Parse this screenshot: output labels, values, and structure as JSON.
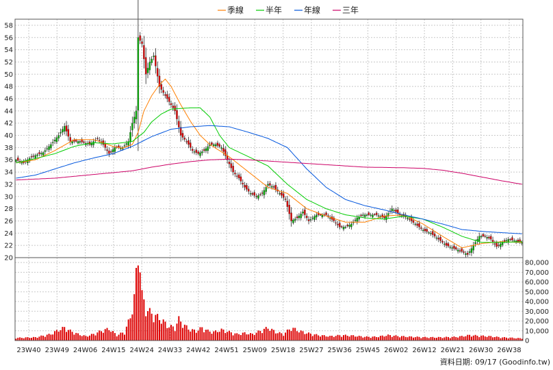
{
  "legend": [
    {
      "name": "季線",
      "color": "#ff7f00"
    },
    {
      "name": "半年",
      "color": "#00cc00"
    },
    {
      "name": "年線",
      "color": "#0055dd"
    },
    {
      "name": "三年",
      "color": "#cc0066"
    }
  ],
  "footer": "資料日期: 09/17  (Goodinfo.tw)",
  "chart_data": {
    "type": "candlestick",
    "title": "",
    "price_axis": {
      "ylim": [
        20,
        59
      ],
      "ticks": [
        20,
        22,
        24,
        26,
        28,
        30,
        32,
        34,
        36,
        38,
        40,
        42,
        44,
        46,
        48,
        50,
        52,
        54,
        56,
        58
      ]
    },
    "volume_axis": {
      "ylim": [
        0,
        85000
      ],
      "ticks": [
        0,
        10000,
        20000,
        30000,
        40000,
        50000,
        60000,
        70000,
        80000
      ],
      "tick_labels": [
        "0",
        "10,000",
        "20,000",
        "30,000",
        "40,000",
        "50,000",
        "60,000",
        "70,000",
        "80,000"
      ]
    },
    "x_tick_labels": [
      "23W40",
      "23W49",
      "24W06",
      "24W15",
      "24W24",
      "24W33",
      "24W42",
      "24W51",
      "25W09",
      "25W18",
      "25W27",
      "25W36",
      "25W45",
      "26W02",
      "26W12",
      "26W21",
      "26W30",
      "26W38"
    ],
    "grid": true,
    "up_color": "#00aa00",
    "down_color": "#dd0000",
    "volume_color": "#dd0000",
    "close_anchors": [
      [
        0,
        36
      ],
      [
        4,
        35.5
      ],
      [
        8,
        36.5
      ],
      [
        14,
        37.2
      ],
      [
        18,
        38.5
      ],
      [
        22,
        40
      ],
      [
        25,
        41.5
      ],
      [
        28,
        39
      ],
      [
        33,
        39
      ],
      [
        38,
        38.5
      ],
      [
        42,
        39.5
      ],
      [
        45,
        38.5
      ],
      [
        48,
        37
      ],
      [
        51,
        38
      ],
      [
        55,
        38
      ],
      [
        58,
        39
      ],
      [
        60,
        42
      ],
      [
        62,
        44
      ],
      [
        63,
        56
      ],
      [
        65,
        55
      ],
      [
        67,
        50
      ],
      [
        69,
        52
      ],
      [
        71,
        53
      ],
      [
        74,
        48
      ],
      [
        76,
        47
      ],
      [
        78,
        46
      ],
      [
        80,
        45
      ],
      [
        82,
        44
      ],
      [
        85,
        40
      ],
      [
        88,
        39
      ],
      [
        91,
        37.5
      ],
      [
        94,
        37
      ],
      [
        97,
        37.5
      ],
      [
        100,
        38.5
      ],
      [
        103,
        38.5
      ],
      [
        106,
        38
      ],
      [
        109,
        36
      ],
      [
        112,
        34
      ],
      [
        115,
        33
      ],
      [
        118,
        31.5
      ],
      [
        121,
        30.5
      ],
      [
        124,
        30
      ],
      [
        127,
        30.5
      ],
      [
        130,
        32
      ],
      [
        133,
        31.5
      ],
      [
        136,
        30.5
      ],
      [
        139,
        29.5
      ],
      [
        142,
        26
      ],
      [
        145,
        26.5
      ],
      [
        148,
        27.5
      ],
      [
        151,
        26
      ],
      [
        155,
        27
      ],
      [
        160,
        27
      ],
      [
        164,
        26
      ],
      [
        167,
        25
      ],
      [
        170,
        25
      ],
      [
        173,
        25.5
      ],
      [
        176,
        26.5
      ],
      [
        179,
        27
      ],
      [
        182,
        27
      ],
      [
        186,
        27
      ],
      [
        190,
        26.5
      ],
      [
        194,
        28
      ],
      [
        198,
        27
      ],
      [
        202,
        26.5
      ],
      [
        206,
        25.5
      ],
      [
        210,
        24.5
      ],
      [
        214,
        24
      ],
      [
        218,
        23
      ],
      [
        222,
        22
      ],
      [
        226,
        21.5
      ],
      [
        230,
        21
      ],
      [
        233,
        20.5
      ],
      [
        236,
        22
      ],
      [
        239,
        23.5
      ],
      [
        242,
        23.5
      ],
      [
        245,
        23
      ],
      [
        248,
        21.8
      ],
      [
        251,
        22.5
      ],
      [
        254,
        23
      ],
      [
        257,
        22.8
      ],
      [
        261,
        22.5
      ]
    ],
    "volume_anchors": [
      [
        0,
        2500
      ],
      [
        10,
        3000
      ],
      [
        18,
        6000
      ],
      [
        22,
        10000
      ],
      [
        25,
        12000
      ],
      [
        28,
        9000
      ],
      [
        32,
        6000
      ],
      [
        36,
        4000
      ],
      [
        40,
        6000
      ],
      [
        44,
        9000
      ],
      [
        48,
        11000
      ],
      [
        52,
        5000
      ],
      [
        56,
        8000
      ],
      [
        59,
        22000
      ],
      [
        61,
        40000
      ],
      [
        63,
        82000
      ],
      [
        64,
        72000
      ],
      [
        65,
        42000
      ],
      [
        67,
        30000
      ],
      [
        70,
        25000
      ],
      [
        73,
        22000
      ],
      [
        76,
        18000
      ],
      [
        78,
        14000
      ],
      [
        80,
        13000
      ],
      [
        82,
        12000
      ],
      [
        84,
        20000
      ],
      [
        87,
        14000
      ],
      [
        90,
        10000
      ],
      [
        93,
        9000
      ],
      [
        96,
        12000
      ],
      [
        99,
        9000
      ],
      [
        102,
        8000
      ],
      [
        106,
        10000
      ],
      [
        110,
        8000
      ],
      [
        114,
        6000
      ],
      [
        118,
        7000
      ],
      [
        122,
        6000
      ],
      [
        126,
        9000
      ],
      [
        130,
        12000
      ],
      [
        134,
        8000
      ],
      [
        138,
        6000
      ],
      [
        142,
        12000
      ],
      [
        146,
        9000
      ],
      [
        150,
        7000
      ],
      [
        156,
        5000
      ],
      [
        162,
        4000
      ],
      [
        168,
        5000
      ],
      [
        174,
        4500
      ],
      [
        180,
        3500
      ],
      [
        186,
        3500
      ],
      [
        192,
        5000
      ],
      [
        198,
        4000
      ],
      [
        204,
        3500
      ],
      [
        212,
        3000
      ],
      [
        220,
        3000
      ],
      [
        228,
        3500
      ],
      [
        234,
        5000
      ],
      [
        238,
        4500
      ],
      [
        244,
        4000
      ],
      [
        250,
        3000
      ],
      [
        256,
        2500
      ],
      [
        261,
        2000
      ]
    ],
    "ma_series": [
      {
        "name": "季線",
        "color": "#ff7f00",
        "points": [
          [
            0,
            35.5
          ],
          [
            10,
            36
          ],
          [
            20,
            37.5
          ],
          [
            30,
            39.3
          ],
          [
            40,
            39.3
          ],
          [
            50,
            38.2
          ],
          [
            55,
            37.9
          ],
          [
            60,
            38.5
          ],
          [
            63,
            40.5
          ],
          [
            66,
            44
          ],
          [
            70,
            46.5
          ],
          [
            74,
            48.3
          ],
          [
            77,
            49.2
          ],
          [
            80,
            48
          ],
          [
            85,
            45
          ],
          [
            90,
            42.3
          ],
          [
            95,
            40
          ],
          [
            100,
            38.5
          ],
          [
            110,
            36.5
          ],
          [
            120,
            34
          ],
          [
            130,
            31.5
          ],
          [
            140,
            30.5
          ],
          [
            150,
            28
          ],
          [
            160,
            26.8
          ],
          [
            170,
            25.8
          ],
          [
            180,
            25.8
          ],
          [
            190,
            26.8
          ],
          [
            200,
            27
          ],
          [
            210,
            25.5
          ],
          [
            220,
            23.5
          ],
          [
            230,
            21.6
          ],
          [
            240,
            22.3
          ],
          [
            250,
            22.6
          ],
          [
            261,
            22.5
          ]
        ]
      },
      {
        "name": "半年",
        "color": "#00cc00",
        "points": [
          [
            0,
            35.5
          ],
          [
            10,
            36.2
          ],
          [
            20,
            37
          ],
          [
            30,
            38.2
          ],
          [
            40,
            38.8
          ],
          [
            50,
            38.6
          ],
          [
            60,
            39
          ],
          [
            66,
            40.5
          ],
          [
            70,
            42.2
          ],
          [
            75,
            43.5
          ],
          [
            80,
            44.3
          ],
          [
            90,
            44.5
          ],
          [
            95,
            44.5
          ],
          [
            100,
            43
          ],
          [
            105,
            40
          ],
          [
            110,
            38
          ],
          [
            120,
            36.5
          ],
          [
            130,
            35
          ],
          [
            140,
            32
          ],
          [
            150,
            29.5
          ],
          [
            160,
            28
          ],
          [
            170,
            27
          ],
          [
            180,
            26.5
          ],
          [
            190,
            26.3
          ],
          [
            200,
            26.8
          ],
          [
            210,
            26.3
          ],
          [
            220,
            25
          ],
          [
            230,
            23.5
          ],
          [
            240,
            22.5
          ],
          [
            250,
            22.5
          ],
          [
            261,
            22.6
          ]
        ]
      },
      {
        "name": "年線",
        "color": "#0055dd",
        "points": [
          [
            0,
            33
          ],
          [
            10,
            33.5
          ],
          [
            20,
            34.5
          ],
          [
            30,
            35.5
          ],
          [
            40,
            36.3
          ],
          [
            50,
            37
          ],
          [
            60,
            38.2
          ],
          [
            70,
            39.8
          ],
          [
            80,
            41
          ],
          [
            90,
            41.4
          ],
          [
            100,
            41.6
          ],
          [
            110,
            41.4
          ],
          [
            120,
            40.5
          ],
          [
            130,
            39.5
          ],
          [
            140,
            38
          ],
          [
            150,
            34.5
          ],
          [
            160,
            31.5
          ],
          [
            170,
            29.5
          ],
          [
            180,
            28.5
          ],
          [
            190,
            27.8
          ],
          [
            200,
            27
          ],
          [
            210,
            26.3
          ],
          [
            220,
            25.5
          ],
          [
            230,
            24.6
          ],
          [
            240,
            24.3
          ],
          [
            250,
            24.1
          ],
          [
            261,
            23.9
          ]
        ]
      },
      {
        "name": "三年",
        "color": "#cc0066",
        "points": [
          [
            0,
            32.7
          ],
          [
            20,
            33
          ],
          [
            40,
            33.6
          ],
          [
            60,
            34.2
          ],
          [
            70,
            34.8
          ],
          [
            80,
            35.3
          ],
          [
            90,
            35.7
          ],
          [
            100,
            36
          ],
          [
            110,
            36.1
          ],
          [
            120,
            36
          ],
          [
            140,
            35.6
          ],
          [
            160,
            35.2
          ],
          [
            180,
            34.8
          ],
          [
            200,
            34.7
          ],
          [
            210,
            34.6
          ],
          [
            220,
            34.3
          ],
          [
            230,
            33.8
          ],
          [
            240,
            33.2
          ],
          [
            250,
            32.6
          ],
          [
            261,
            32
          ]
        ]
      }
    ]
  }
}
